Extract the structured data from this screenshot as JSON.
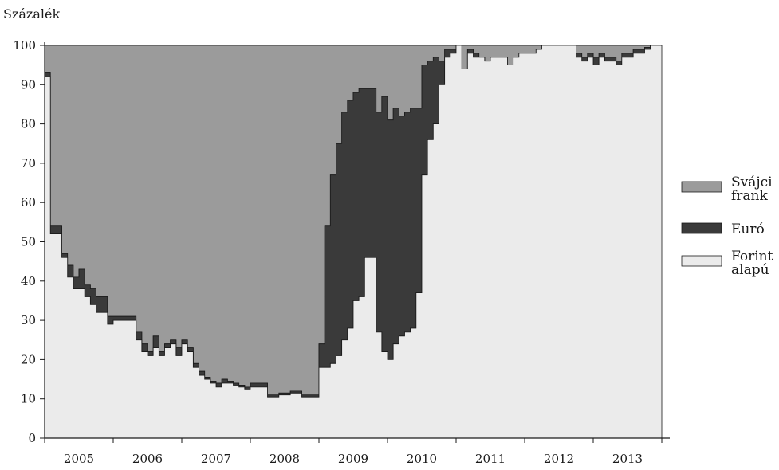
{
  "chart_data": {
    "type": "area",
    "stacked": true,
    "ylabel": "Százalék",
    "xlabel": "",
    "ylim": [
      0,
      100
    ],
    "yticks": [
      0,
      10,
      20,
      30,
      40,
      50,
      60,
      70,
      80,
      90,
      100
    ],
    "xlim": [
      "2005-01",
      "2014-01"
    ],
    "year_labels": [
      "2005",
      "2006",
      "2007",
      "2008",
      "2009",
      "2010",
      "2011",
      "2012",
      "2013"
    ],
    "legend_position": "right",
    "grid": false,
    "x": [
      "2005-01",
      "2005-02",
      "2005-03",
      "2005-04",
      "2005-05",
      "2005-06",
      "2005-07",
      "2005-08",
      "2005-09",
      "2005-10",
      "2005-11",
      "2005-12",
      "2006-01",
      "2006-02",
      "2006-03",
      "2006-04",
      "2006-05",
      "2006-06",
      "2006-07",
      "2006-08",
      "2006-09",
      "2006-10",
      "2006-11",
      "2006-12",
      "2007-01",
      "2007-02",
      "2007-03",
      "2007-04",
      "2007-05",
      "2007-06",
      "2007-07",
      "2007-08",
      "2007-09",
      "2007-10",
      "2007-11",
      "2007-12",
      "2008-01",
      "2008-02",
      "2008-03",
      "2008-04",
      "2008-05",
      "2008-06",
      "2008-07",
      "2008-08",
      "2008-09",
      "2008-10",
      "2008-11",
      "2008-12",
      "2009-01",
      "2009-02",
      "2009-03",
      "2009-04",
      "2009-05",
      "2009-06",
      "2009-07",
      "2009-08",
      "2009-09",
      "2009-10",
      "2009-11",
      "2009-12",
      "2010-01",
      "2010-02",
      "2010-03",
      "2010-04",
      "2010-05",
      "2010-06",
      "2010-07",
      "2010-08",
      "2010-09",
      "2010-10",
      "2010-11",
      "2010-12",
      "2011-01",
      "2011-02",
      "2011-03",
      "2011-04",
      "2011-05",
      "2011-06",
      "2011-07",
      "2011-08",
      "2011-09",
      "2011-10",
      "2011-11",
      "2011-12",
      "2012-01",
      "2012-02",
      "2012-03",
      "2012-04",
      "2012-05",
      "2012-06",
      "2012-07",
      "2012-08",
      "2012-09",
      "2012-10",
      "2012-11",
      "2012-12",
      "2013-01",
      "2013-02",
      "2013-03",
      "2013-04",
      "2013-05",
      "2013-06",
      "2013-07",
      "2013-08",
      "2013-09",
      "2013-10",
      "2013-11",
      "2013-12"
    ],
    "series": [
      {
        "name": "Forint alapú",
        "color": "#ebebeb",
        "values": [
          92,
          52,
          52,
          46,
          41,
          38,
          38,
          36,
          34,
          32,
          32,
          29,
          30,
          30,
          30,
          30,
          25,
          22,
          21,
          23,
          21,
          23,
          24,
          21,
          24,
          22,
          18,
          16,
          15,
          14,
          13,
          14,
          14,
          13.5,
          13,
          12.5,
          13,
          13,
          13,
          10.5,
          10.5,
          11,
          11,
          11.5,
          11.5,
          10.5,
          10.5,
          10.5,
          18,
          18,
          19,
          21,
          25,
          28,
          35,
          36,
          46,
          46,
          27,
          22,
          20,
          24,
          26,
          27,
          28,
          37,
          67,
          76,
          80,
          90,
          97,
          98,
          100,
          94,
          98,
          97,
          97,
          96,
          97,
          97,
          97,
          95,
          97,
          98,
          98,
          98,
          99,
          100,
          100,
          100,
          100,
          100,
          100,
          97,
          96,
          97,
          95,
          97,
          96,
          96,
          95,
          97,
          97,
          98,
          98,
          99,
          100,
          100
        ]
      },
      {
        "name": "Euró",
        "color": "#3a3a3a",
        "values": [
          1,
          2,
          2,
          1,
          3,
          3,
          5,
          3,
          4,
          4,
          4,
          2,
          1,
          1,
          1,
          1,
          2,
          2,
          1,
          3,
          1,
          1,
          1,
          2,
          1,
          1,
          1,
          1,
          0.5,
          0.5,
          1,
          1,
          0.5,
          0.5,
          0.5,
          0.5,
          1,
          1,
          1,
          0.5,
          0.5,
          0.5,
          0.5,
          0.5,
          0.5,
          0.5,
          0.5,
          0.5,
          6,
          36,
          48,
          54,
          58,
          58,
          53,
          53,
          43,
          43,
          56,
          65,
          61,
          60,
          56,
          56,
          56,
          47,
          28,
          20,
          17,
          6,
          2,
          1,
          0,
          0,
          1,
          1,
          0,
          0,
          0,
          0,
          0,
          0,
          0,
          0,
          0,
          0,
          0,
          0,
          0,
          0,
          0,
          0,
          0,
          1,
          1,
          1,
          2,
          1,
          1,
          1,
          1,
          1,
          1,
          1,
          1,
          0.5,
          0,
          0
        ]
      },
      {
        "name": "Svájci frank",
        "color": "#9b9b9b",
        "values": [
          7,
          46,
          46,
          53,
          56,
          59,
          57,
          61,
          62,
          64,
          64,
          69,
          69,
          69,
          69,
          69,
          73,
          76,
          78,
          74,
          78,
          76,
          75,
          77,
          75,
          77,
          81,
          83,
          84.5,
          85.5,
          86,
          85,
          85.5,
          86,
          86.5,
          87,
          86,
          86,
          86,
          89,
          89,
          88.5,
          88.5,
          88,
          88,
          89,
          89,
          89,
          76,
          46,
          33,
          25,
          17,
          14,
          12,
          11,
          11,
          11,
          17,
          13,
          19,
          16,
          18,
          17,
          16,
          16,
          5,
          4,
          3,
          4,
          1,
          1,
          0,
          6,
          1,
          2,
          3,
          4,
          3,
          3,
          3,
          5,
          3,
          2,
          2,
          2,
          1,
          0,
          0,
          0,
          0,
          0,
          0,
          2,
          3,
          2,
          3,
          2,
          3,
          3,
          4,
          2,
          2,
          1,
          1,
          0.5,
          0,
          0
        ]
      }
    ]
  }
}
